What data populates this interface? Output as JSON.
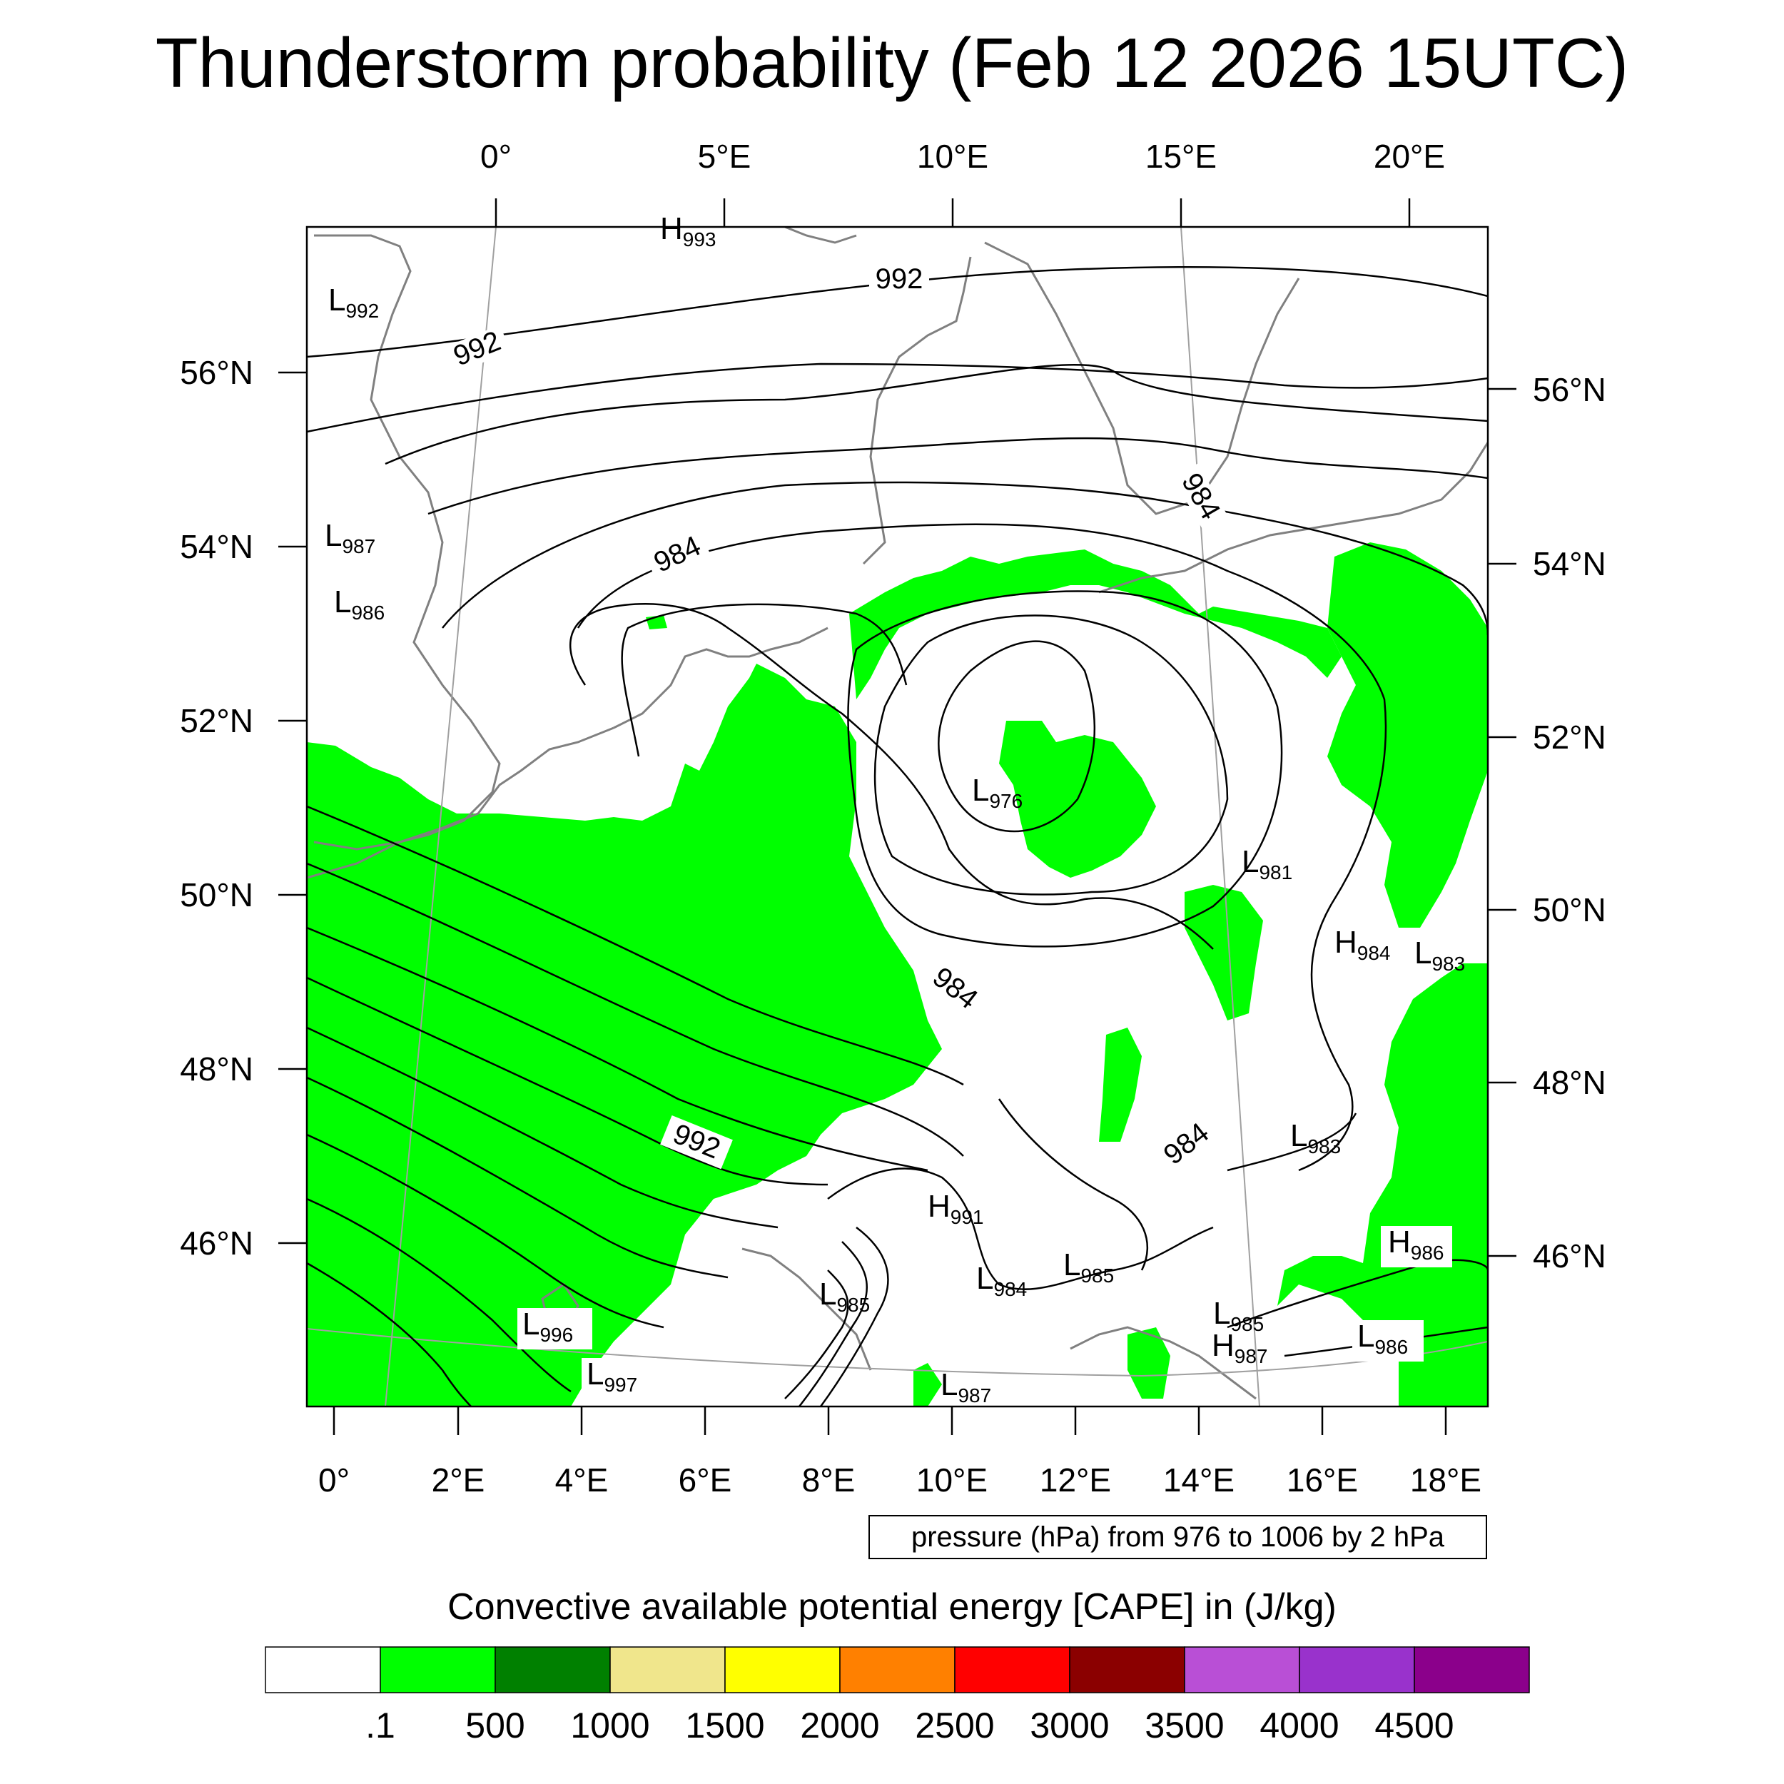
{
  "title": "Thunderstorm probability (Feb 12 2026 15UTC)",
  "map": {
    "top_lon_labels": [
      "0°",
      "5°E",
      "10°E",
      "15°E",
      "20°E"
    ],
    "bottom_lon_labels": [
      "0°",
      "2°E",
      "4°E",
      "6°E",
      "8°E",
      "10°E",
      "12°E",
      "14°E",
      "16°E",
      "18°E"
    ],
    "left_lat_labels": [
      "56°N",
      "54°N",
      "52°N",
      "50°N",
      "48°N",
      "46°N"
    ],
    "right_lat_labels": [
      "56°N",
      "54°N",
      "52°N",
      "50°N",
      "48°N",
      "46°N"
    ],
    "isobar_labels": [
      "992",
      "992",
      "984",
      "984",
      "984",
      "992",
      "984"
    ],
    "pressure_centers": [
      {
        "type": "H",
        "value": "993"
      },
      {
        "type": "L",
        "value": "992"
      },
      {
        "type": "L",
        "value": "987"
      },
      {
        "type": "L",
        "value": "986"
      },
      {
        "type": "L",
        "value": "976"
      },
      {
        "type": "L",
        "value": "981"
      },
      {
        "type": "H",
        "value": "984"
      },
      {
        "type": "L",
        "value": "983"
      },
      {
        "type": "L",
        "value": "983"
      },
      {
        "type": "H",
        "value": "991"
      },
      {
        "type": "L",
        "value": "984"
      },
      {
        "type": "L",
        "value": "985"
      },
      {
        "type": "L",
        "value": "985"
      },
      {
        "type": "L",
        "value": "985"
      },
      {
        "type": "H",
        "value": "986"
      },
      {
        "type": "L",
        "value": "986"
      },
      {
        "type": "L",
        "value": "996"
      },
      {
        "type": "L",
        "value": "997"
      },
      {
        "type": "H",
        "value": "987"
      },
      {
        "type": "L",
        "value": "987"
      }
    ],
    "cape_color": "#00ff00",
    "isobar_color": "#000000",
    "coast_color": "#808080"
  },
  "pressure_note": "pressure (hPa) from 976 to 1006 by 2 hPa",
  "colorbar": {
    "title": "Convective available potential energy [CAPE] in (J/kg)",
    "colors": [
      "#ffffff",
      "#00ff00",
      "#008000",
      "#f0e68c",
      "#ffff00",
      "#ff8000",
      "#ff0000",
      "#8b0000",
      "#b94fd6",
      "#9932cc",
      "#8b008b"
    ],
    "labels": [
      ".1",
      "500",
      "1000",
      "1500",
      "2000",
      "2500",
      "3000",
      "3500",
      "4000",
      "4500"
    ]
  }
}
